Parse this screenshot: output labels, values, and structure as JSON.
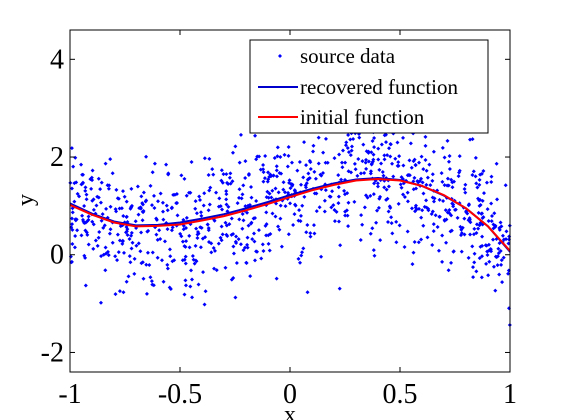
{
  "chart_data": {
    "type": "scatter",
    "title": "",
    "xlabel": "x",
    "ylabel": "y",
    "xlim": [
      -1,
      1
    ],
    "ylim": [
      -2.4,
      4.6
    ],
    "xticks": [
      -1,
      -0.5,
      0,
      0.5,
      1
    ],
    "xtick_labels": [
      "-1",
      "-0.5",
      "0",
      "0.5",
      "1"
    ],
    "yticks": [
      -2,
      0,
      2,
      4
    ],
    "ytick_labels": [
      "-2",
      "0",
      "2",
      "4"
    ],
    "grid": false,
    "legend_position": "top-right",
    "series": [
      {
        "name": "source data",
        "kind": "scatter",
        "color": "#0000ff",
        "marker": "dot",
        "count": 1000,
        "x_range": [
          -1,
          1
        ],
        "y_range": [
          -2.3,
          4.5
        ]
      },
      {
        "name": "recovered function",
        "kind": "line",
        "color": "#0000cc",
        "x": [
          -1.0,
          -0.9,
          -0.8,
          -0.7,
          -0.6,
          -0.5,
          -0.4,
          -0.3,
          -0.2,
          -0.1,
          0.0,
          0.1,
          0.2,
          0.3,
          0.4,
          0.5,
          0.6,
          0.7,
          0.8,
          0.9,
          1.0
        ],
        "y": [
          1.05,
          0.84,
          0.68,
          0.6,
          0.61,
          0.66,
          0.74,
          0.83,
          0.95,
          1.08,
          1.22,
          1.35,
          1.46,
          1.54,
          1.57,
          1.53,
          1.41,
          1.21,
          0.95,
          0.58,
          0.06
        ]
      },
      {
        "name": "initial function",
        "kind": "line",
        "color": "#ff0000",
        "x": [
          -1.0,
          -0.9,
          -0.8,
          -0.7,
          -0.6,
          -0.5,
          -0.4,
          -0.3,
          -0.2,
          -0.1,
          0.0,
          0.1,
          0.2,
          0.3,
          0.4,
          0.5,
          0.6,
          0.7,
          0.8,
          0.9,
          1.0
        ],
        "y": [
          1.02,
          0.82,
          0.66,
          0.58,
          0.59,
          0.62,
          0.7,
          0.79,
          0.91,
          1.04,
          1.18,
          1.32,
          1.43,
          1.52,
          1.55,
          1.52,
          1.41,
          1.22,
          0.95,
          0.58,
          0.08
        ]
      }
    ]
  }
}
